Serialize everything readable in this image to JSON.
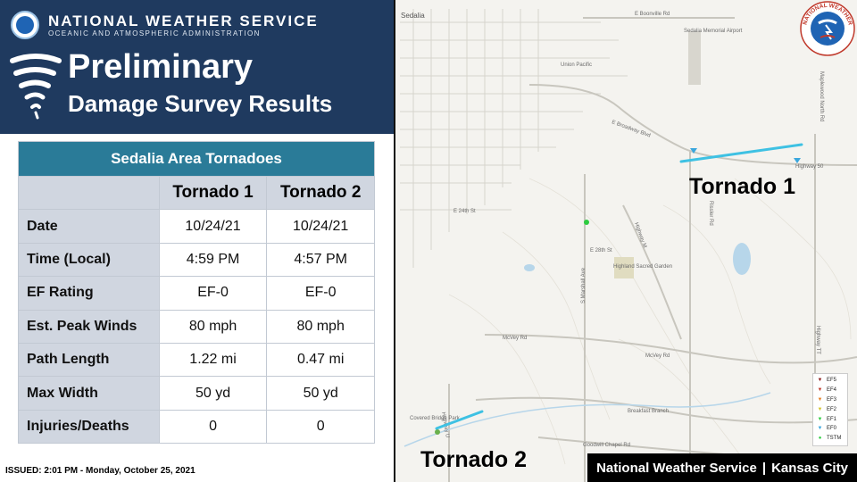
{
  "header": {
    "agency": "NATIONAL WEATHER SERVICE",
    "agency_sub": "OCEANIC AND ATMOSPHERIC ADMINISTRATION",
    "title_line1": "Preliminary",
    "title_line2": "Damage Survey Results"
  },
  "table": {
    "caption": "Sedalia Area Tornadoes",
    "columns": [
      "Tornado 1",
      "Tornado 2"
    ],
    "rows": [
      {
        "label": "Date",
        "values": [
          "10/24/21",
          "10/24/21"
        ]
      },
      {
        "label": "Time (Local)",
        "values": [
          "4:59 PM",
          "4:57 PM"
        ]
      },
      {
        "label": "EF Rating",
        "values": [
          "EF-0",
          "EF-0"
        ]
      },
      {
        "label": "Est. Peak Winds",
        "values": [
          "80 mph",
          "80 mph"
        ]
      },
      {
        "label": "Path Length",
        "values": [
          "1.22 mi",
          "0.47 mi"
        ]
      },
      {
        "label": "Max Width",
        "values": [
          "50 yd",
          "50 yd"
        ]
      },
      {
        "label": "Injuries/Deaths",
        "values": [
          "0",
          "0"
        ]
      }
    ]
  },
  "issued": "ISSUED: 2:01 PM - Monday, October 25, 2021",
  "map": {
    "tornado1_label": "Tornado 1",
    "tornado2_label": "Tornado 2",
    "streets": {
      "sedalia": "Sedalia",
      "boonville": "E Boonville Rd",
      "broadway": "E Broadway Blvd",
      "mcvey": "McVey Rd",
      "mcvey2": "McVey Rd",
      "highway50": "Highway 50",
      "airport": "Sedalia Memorial Airport",
      "union_pacific": "Union Pacific",
      "highland": "Highland Sacred Garden",
      "breakfast": "Breakfast Branch",
      "goodwill": "Goodwill Chapel Rd",
      "covered_bridge": "Covered Bridge Park",
      "marshall": "S Marshall Ave",
      "highway_m": "Highway M",
      "rissler": "Rissler Rd",
      "maplewood": "Maplewood North Rd",
      "highway_tt": "Highway TT",
      "e28th": "E 28th St",
      "e24th": "E 24th St",
      "highway_u": "Highway U"
    }
  },
  "legend": [
    {
      "label": "EF5",
      "color": "#8b1a1a"
    },
    {
      "label": "EF4",
      "color": "#c0392b"
    },
    {
      "label": "EF3",
      "color": "#e67e22"
    },
    {
      "label": "EF2",
      "color": "#d4c32a"
    },
    {
      "label": "EF1",
      "color": "#2ecc40"
    },
    {
      "label": "EF0",
      "color": "#3aa6dd"
    },
    {
      "label": "TSTM",
      "color": "#2ecc40"
    }
  ],
  "footer": {
    "left": "National Weather Service",
    "sep": "|",
    "right": "Kansas City"
  },
  "seal_text": "NATIONAL WEATHER SERVICE",
  "colors": {
    "header_bg": "#1f3a5f",
    "table_caption": "#2a7b98",
    "table_label_bg": "#d0d6e0",
    "track": "#3ec1e3"
  }
}
